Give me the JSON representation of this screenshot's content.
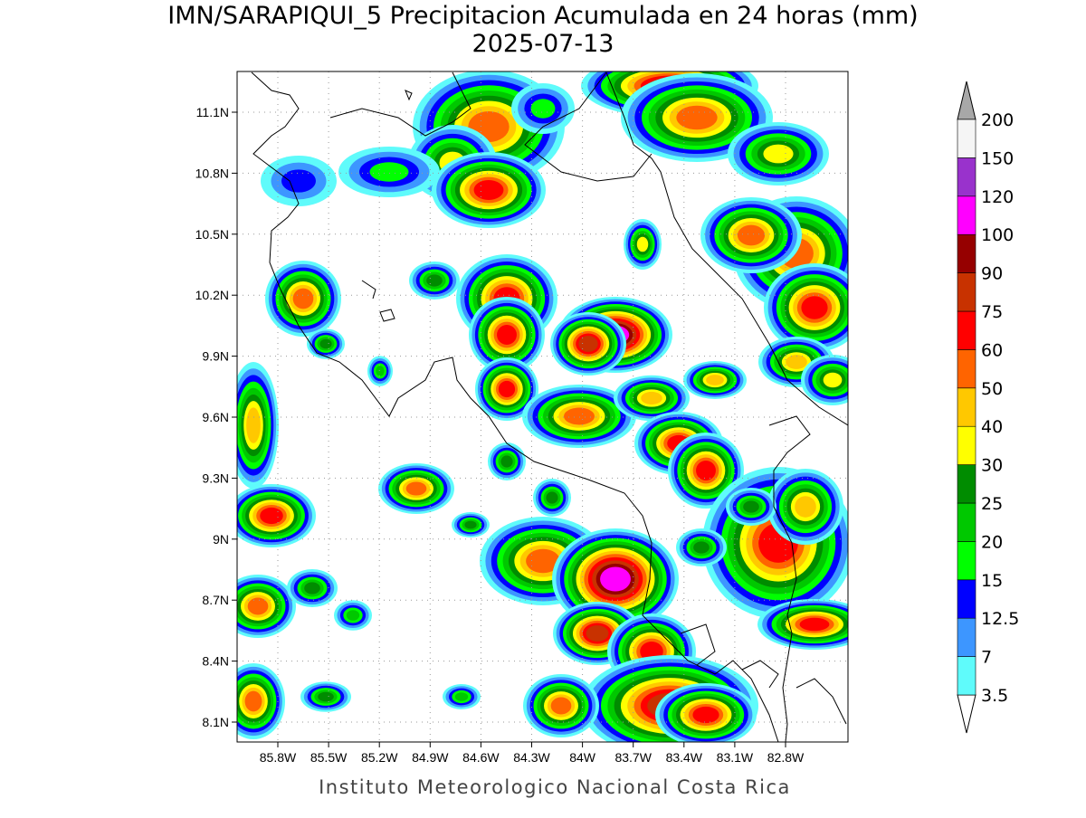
{
  "header": {
    "title": "IMN/SARAPIQUI_5 Precipitacion Acumulada en 24 horas (mm)",
    "date": "2025-07-13"
  },
  "map": {
    "lat_labels": [
      "11.1N",
      "10.8N",
      "10.5N",
      "10.2N",
      "9.9N",
      "9.6N",
      "9.3N",
      "9N",
      "8.7N",
      "8.4N",
      "8.1N"
    ],
    "lon_labels": [
      "85.8W",
      "85.5W",
      "85.2W",
      "84.9W",
      "84.6W",
      "84.3W",
      "84W",
      "83.7W",
      "83.4W",
      "83.1W",
      "82.8W"
    ]
  },
  "colorbar": {
    "levels": [
      3.5,
      7,
      12.5,
      15,
      20,
      25,
      30,
      40,
      50,
      60,
      75,
      90,
      100,
      120,
      150,
      200
    ],
    "colors": [
      "#5ffbfb",
      "#3d96ff",
      "#0000ff",
      "#00ff00",
      "#00c800",
      "#008c00",
      "#ffff00",
      "#ffc800",
      "#ff6400",
      "#ff0000",
      "#c83200",
      "#960000",
      "#ff00ff",
      "#9932cc",
      "#f5f5f5"
    ],
    "over_color": "#a8a8a8",
    "under_color": "#ffffff"
  },
  "footer": "Instituto Meteorologico Nacional Costa Rica"
}
